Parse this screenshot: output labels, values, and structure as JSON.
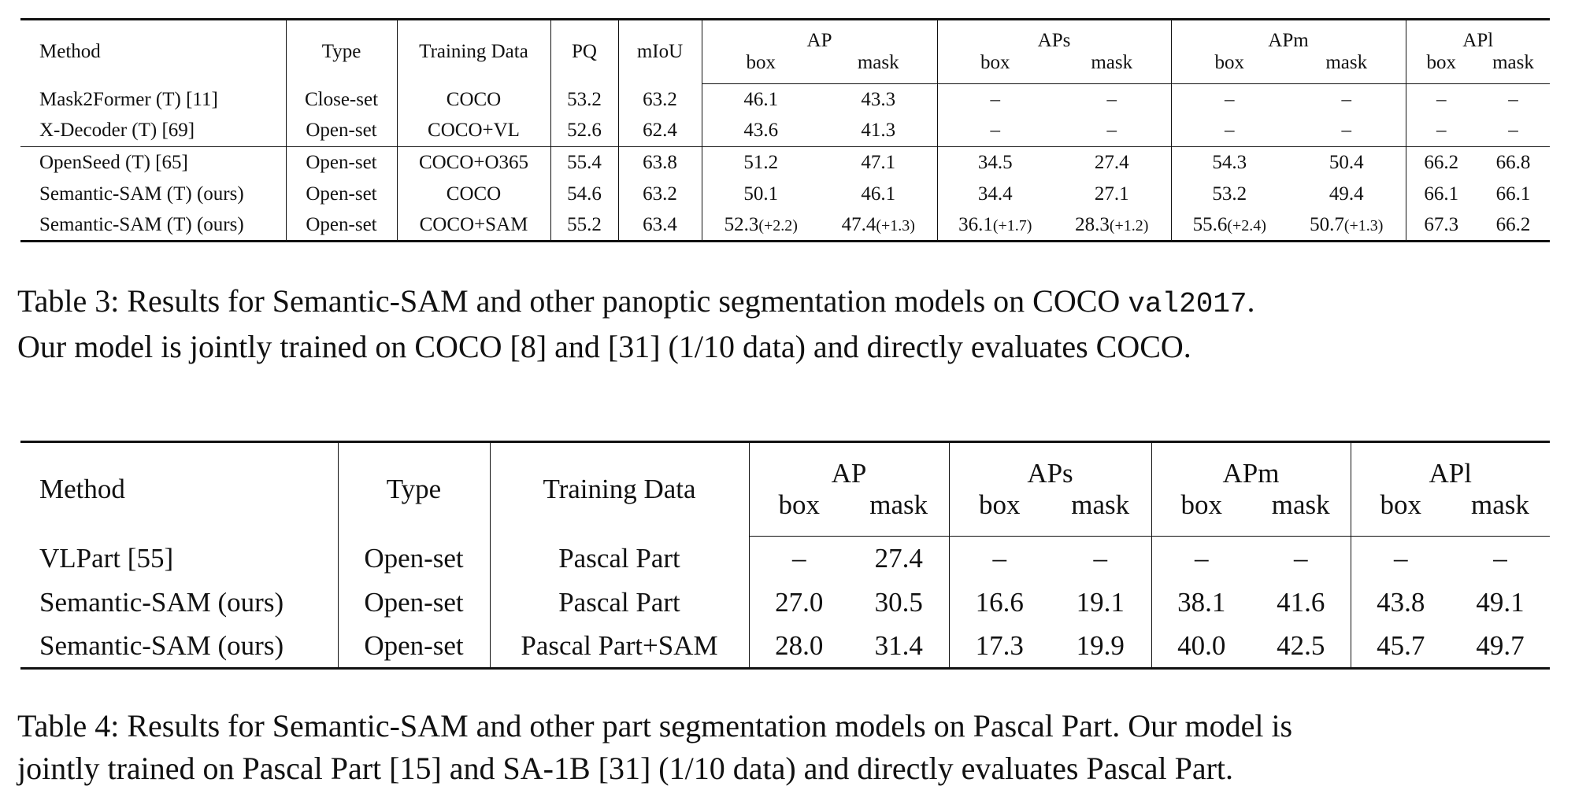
{
  "table3": {
    "header": {
      "method": "Method",
      "type": "Type",
      "training_data": "Training Data",
      "pq": "PQ",
      "miou": "mIoU",
      "groups": [
        {
          "name": "AP",
          "sub": [
            "box",
            "mask"
          ]
        },
        {
          "name": "APs",
          "sub": [
            "box",
            "mask"
          ]
        },
        {
          "name": "APm",
          "sub": [
            "box",
            "mask"
          ]
        },
        {
          "name": "APl",
          "sub": [
            "box",
            "mask"
          ]
        }
      ]
    },
    "rows": [
      [
        "Mask2Former (T) [11]",
        "Close-set",
        "COCO",
        "53.2",
        "63.2",
        "46.1",
        "43.3",
        "–",
        "–",
        "–",
        "–",
        "–",
        "–"
      ],
      [
        "X-Decoder (T) [69]",
        "Open-set",
        "COCO+VL",
        "52.6",
        "62.4",
        "43.6",
        "41.3",
        "–",
        "–",
        "–",
        "–",
        "–",
        "–"
      ],
      [
        "OpenSeed (T) [65]",
        "Open-set",
        "COCO+O365",
        "55.4",
        "63.8",
        "51.2",
        "47.1",
        "34.5",
        "27.4",
        "54.3",
        "50.4",
        "66.2",
        "66.8"
      ],
      [
        "Semantic-SAM (T) (ours)",
        "Open-set",
        "COCO",
        "54.6",
        "63.2",
        "50.1",
        "46.1",
        "34.4",
        "27.1",
        "53.2",
        "49.4",
        "66.1",
        "66.1"
      ],
      [
        "Semantic-SAM (T) (ours)",
        "Open-set",
        "COCO+SAM",
        "55.2",
        "63.4",
        {
          "text": "52.3",
          "delta": "(+2.2)"
        },
        {
          "text": "47.4",
          "delta": "(+1.3)"
        },
        {
          "text": "36.1",
          "delta": "(+1.7)"
        },
        {
          "text": "28.3",
          "delta": "(+1.2)"
        },
        {
          "text": "55.6",
          "delta": "(+2.4)"
        },
        {
          "text": "50.7",
          "delta": "(+1.3)"
        },
        "67.3",
        "66.2"
      ]
    ],
    "caption": [
      [
        "Table 3: Results for Semantic-SAM and other panoptic segmentation models on COCO ",
        {
          "code": "val2017"
        },
        "."
      ],
      [
        "Our model is jointly trained on COCO [8] and  [31] (1/10 data) and directly evaluates COCO."
      ]
    ]
  },
  "table4": {
    "header": {
      "method": "Method",
      "type": "Type",
      "training_data": "Training Data",
      "groups": [
        {
          "name": "AP",
          "sub": [
            "box",
            "mask"
          ]
        },
        {
          "name": "APs",
          "sub": [
            "box",
            "mask"
          ]
        },
        {
          "name": "APm",
          "sub": [
            "box",
            "mask"
          ]
        },
        {
          "name": "APl",
          "sub": [
            "box",
            "mask"
          ]
        }
      ]
    },
    "rows": [
      [
        "VLPart [55]",
        "Open-set",
        "Pascal Part",
        "–",
        "27.4",
        "–",
        "–",
        "–",
        "–",
        "–",
        "–"
      ],
      [
        "Semantic-SAM (ours)",
        "Open-set",
        "Pascal Part",
        "27.0",
        "30.5",
        "16.6",
        "19.1",
        "38.1",
        "41.6",
        "43.8",
        "49.1"
      ],
      [
        "Semantic-SAM (ours)",
        "Open-set",
        "Pascal Part+SAM",
        "28.0",
        "31.4",
        "17.3",
        "19.9",
        "40.0",
        "42.5",
        "45.7",
        "49.7"
      ]
    ],
    "caption": [
      [
        "Table 4: Results for Semantic-SAM and other part segmentation models on Pascal Part. Our model is"
      ],
      [
        "jointly trained on Pascal Part [15] and SA-1B [31] (1/10 data) and directly evaluates Pascal Part."
      ]
    ]
  }
}
